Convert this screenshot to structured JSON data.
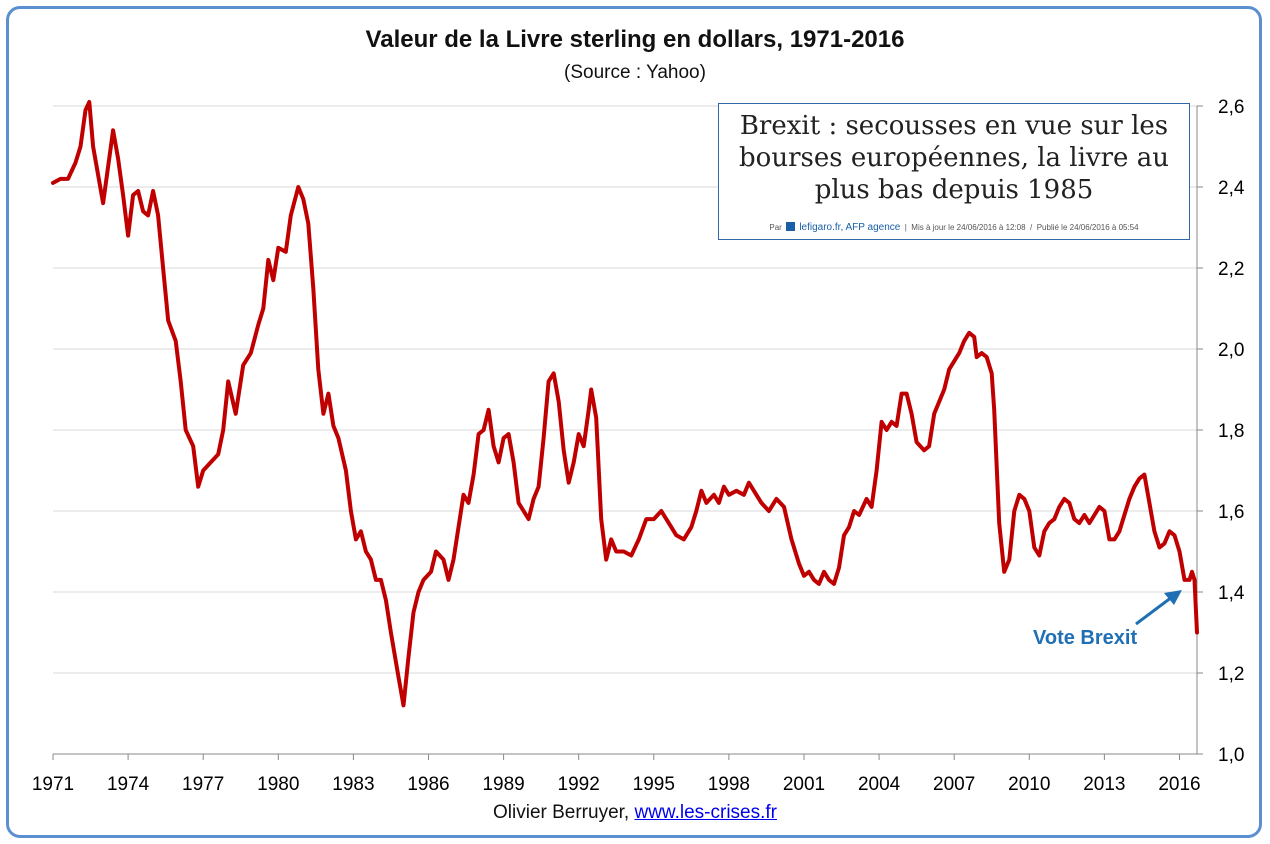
{
  "chart_data": {
    "type": "line",
    "title": "Valeur de la Livre sterling en dollars, 1971-2016",
    "subtitle": "(Source : Yahoo)",
    "xlim": [
      1971,
      2016.7
    ],
    "ylim": [
      1.0,
      2.6
    ],
    "grid": true,
    "x_ticks": [
      1971,
      1974,
      1977,
      1980,
      1983,
      1986,
      1989,
      1992,
      1995,
      1998,
      2001,
      2004,
      2007,
      2010,
      2013,
      2016
    ],
    "y_ticks": [
      {
        "value": 1.0,
        "label": "1,0"
      },
      {
        "value": 1.2,
        "label": "1,2"
      },
      {
        "value": 1.4,
        "label": "1,4"
      },
      {
        "value": 1.6,
        "label": "1,6"
      },
      {
        "value": 1.8,
        "label": "1,8"
      },
      {
        "value": 2.0,
        "label": "2,0"
      },
      {
        "value": 2.2,
        "label": "2,2"
      },
      {
        "value": 2.4,
        "label": "2,4"
      },
      {
        "value": 2.6,
        "label": "2,6"
      }
    ],
    "series": [
      {
        "color": "#c00000",
        "points": [
          [
            1971.0,
            2.41
          ],
          [
            1971.3,
            2.42
          ],
          [
            1971.6,
            2.42
          ],
          [
            1971.9,
            2.46
          ],
          [
            1972.1,
            2.5
          ],
          [
            1972.3,
            2.59
          ],
          [
            1972.45,
            2.61
          ],
          [
            1972.6,
            2.5
          ],
          [
            1972.8,
            2.43
          ],
          [
            1973.0,
            2.36
          ],
          [
            1973.2,
            2.45
          ],
          [
            1973.4,
            2.54
          ],
          [
            1973.6,
            2.47
          ],
          [
            1973.8,
            2.38
          ],
          [
            1974.0,
            2.28
          ],
          [
            1974.2,
            2.38
          ],
          [
            1974.4,
            2.39
          ],
          [
            1974.6,
            2.34
          ],
          [
            1974.8,
            2.33
          ],
          [
            1975.0,
            2.39
          ],
          [
            1975.2,
            2.33
          ],
          [
            1975.4,
            2.2
          ],
          [
            1975.6,
            2.07
          ],
          [
            1975.9,
            2.02
          ],
          [
            1976.1,
            1.92
          ],
          [
            1976.3,
            1.8
          ],
          [
            1976.6,
            1.76
          ],
          [
            1976.8,
            1.66
          ],
          [
            1977.0,
            1.7
          ],
          [
            1977.3,
            1.72
          ],
          [
            1977.6,
            1.74
          ],
          [
            1977.8,
            1.8
          ],
          [
            1978.0,
            1.92
          ],
          [
            1978.3,
            1.84
          ],
          [
            1978.6,
            1.96
          ],
          [
            1978.9,
            1.99
          ],
          [
            1979.2,
            2.06
          ],
          [
            1979.4,
            2.1
          ],
          [
            1979.6,
            2.22
          ],
          [
            1979.8,
            2.17
          ],
          [
            1980.0,
            2.25
          ],
          [
            1980.3,
            2.24
          ],
          [
            1980.5,
            2.33
          ],
          [
            1980.8,
            2.4
          ],
          [
            1981.0,
            2.37
          ],
          [
            1981.2,
            2.31
          ],
          [
            1981.4,
            2.15
          ],
          [
            1981.6,
            1.95
          ],
          [
            1981.8,
            1.84
          ],
          [
            1982.0,
            1.89
          ],
          [
            1982.2,
            1.81
          ],
          [
            1982.4,
            1.78
          ],
          [
            1982.7,
            1.7
          ],
          [
            1982.9,
            1.6
          ],
          [
            1983.1,
            1.53
          ],
          [
            1983.3,
            1.55
          ],
          [
            1983.5,
            1.5
          ],
          [
            1983.7,
            1.48
          ],
          [
            1983.9,
            1.43
          ],
          [
            1984.1,
            1.43
          ],
          [
            1984.3,
            1.38
          ],
          [
            1984.5,
            1.3
          ],
          [
            1984.8,
            1.19
          ],
          [
            1985.0,
            1.12
          ],
          [
            1985.2,
            1.24
          ],
          [
            1985.4,
            1.35
          ],
          [
            1985.6,
            1.4
          ],
          [
            1985.8,
            1.43
          ],
          [
            1986.1,
            1.45
          ],
          [
            1986.3,
            1.5
          ],
          [
            1986.6,
            1.48
          ],
          [
            1986.8,
            1.43
          ],
          [
            1987.0,
            1.48
          ],
          [
            1987.2,
            1.56
          ],
          [
            1987.4,
            1.64
          ],
          [
            1987.6,
            1.62
          ],
          [
            1987.8,
            1.69
          ],
          [
            1988.0,
            1.79
          ],
          [
            1988.2,
            1.8
          ],
          [
            1988.4,
            1.85
          ],
          [
            1988.6,
            1.76
          ],
          [
            1988.8,
            1.72
          ],
          [
            1989.0,
            1.78
          ],
          [
            1989.2,
            1.79
          ],
          [
            1989.4,
            1.72
          ],
          [
            1989.6,
            1.62
          ],
          [
            1989.8,
            1.6
          ],
          [
            1990.0,
            1.58
          ],
          [
            1990.2,
            1.63
          ],
          [
            1990.4,
            1.66
          ],
          [
            1990.6,
            1.78
          ],
          [
            1990.8,
            1.92
          ],
          [
            1991.0,
            1.94
          ],
          [
            1991.2,
            1.87
          ],
          [
            1991.4,
            1.75
          ],
          [
            1991.6,
            1.67
          ],
          [
            1991.8,
            1.72
          ],
          [
            1992.0,
            1.79
          ],
          [
            1992.2,
            1.76
          ],
          [
            1992.4,
            1.85
          ],
          [
            1992.5,
            1.9
          ],
          [
            1992.7,
            1.83
          ],
          [
            1992.9,
            1.58
          ],
          [
            1993.1,
            1.48
          ],
          [
            1993.3,
            1.53
          ],
          [
            1993.5,
            1.5
          ],
          [
            1993.8,
            1.5
          ],
          [
            1994.1,
            1.49
          ],
          [
            1994.4,
            1.53
          ],
          [
            1994.7,
            1.58
          ],
          [
            1995.0,
            1.58
          ],
          [
            1995.3,
            1.6
          ],
          [
            1995.6,
            1.57
          ],
          [
            1995.9,
            1.54
          ],
          [
            1996.2,
            1.53
          ],
          [
            1996.5,
            1.56
          ],
          [
            1996.7,
            1.6
          ],
          [
            1996.9,
            1.65
          ],
          [
            1997.1,
            1.62
          ],
          [
            1997.4,
            1.64
          ],
          [
            1997.6,
            1.62
          ],
          [
            1997.8,
            1.66
          ],
          [
            1998.0,
            1.64
          ],
          [
            1998.3,
            1.65
          ],
          [
            1998.6,
            1.64
          ],
          [
            1998.8,
            1.67
          ],
          [
            1999.0,
            1.65
          ],
          [
            1999.3,
            1.62
          ],
          [
            1999.6,
            1.6
          ],
          [
            1999.9,
            1.63
          ],
          [
            2000.2,
            1.61
          ],
          [
            2000.5,
            1.53
          ],
          [
            2000.8,
            1.47
          ],
          [
            2001.0,
            1.44
          ],
          [
            2001.2,
            1.45
          ],
          [
            2001.4,
            1.43
          ],
          [
            2001.6,
            1.42
          ],
          [
            2001.8,
            1.45
          ],
          [
            2002.0,
            1.43
          ],
          [
            2002.2,
            1.42
          ],
          [
            2002.4,
            1.46
          ],
          [
            2002.6,
            1.54
          ],
          [
            2002.8,
            1.56
          ],
          [
            2003.0,
            1.6
          ],
          [
            2003.2,
            1.59
          ],
          [
            2003.5,
            1.63
          ],
          [
            2003.7,
            1.61
          ],
          [
            2003.9,
            1.7
          ],
          [
            2004.1,
            1.82
          ],
          [
            2004.3,
            1.8
          ],
          [
            2004.5,
            1.82
          ],
          [
            2004.7,
            1.81
          ],
          [
            2004.9,
            1.89
          ],
          [
            2005.1,
            1.89
          ],
          [
            2005.3,
            1.84
          ],
          [
            2005.5,
            1.77
          ],
          [
            2005.8,
            1.75
          ],
          [
            2006.0,
            1.76
          ],
          [
            2006.2,
            1.84
          ],
          [
            2006.4,
            1.87
          ],
          [
            2006.6,
            1.9
          ],
          [
            2006.8,
            1.95
          ],
          [
            2007.0,
            1.97
          ],
          [
            2007.2,
            1.99
          ],
          [
            2007.4,
            2.02
          ],
          [
            2007.6,
            2.04
          ],
          [
            2007.8,
            2.03
          ],
          [
            2007.9,
            1.98
          ],
          [
            2008.1,
            1.99
          ],
          [
            2008.3,
            1.98
          ],
          [
            2008.5,
            1.94
          ],
          [
            2008.6,
            1.85
          ],
          [
            2008.8,
            1.57
          ],
          [
            2009.0,
            1.45
          ],
          [
            2009.2,
            1.48
          ],
          [
            2009.4,
            1.6
          ],
          [
            2009.6,
            1.64
          ],
          [
            2009.8,
            1.63
          ],
          [
            2010.0,
            1.6
          ],
          [
            2010.2,
            1.51
          ],
          [
            2010.4,
            1.49
          ],
          [
            2010.6,
            1.55
          ],
          [
            2010.8,
            1.57
          ],
          [
            2011.0,
            1.58
          ],
          [
            2011.2,
            1.61
          ],
          [
            2011.4,
            1.63
          ],
          [
            2011.6,
            1.62
          ],
          [
            2011.8,
            1.58
          ],
          [
            2012.0,
            1.57
          ],
          [
            2012.2,
            1.59
          ],
          [
            2012.4,
            1.57
          ],
          [
            2012.6,
            1.59
          ],
          [
            2012.8,
            1.61
          ],
          [
            2013.0,
            1.6
          ],
          [
            2013.2,
            1.53
          ],
          [
            2013.4,
            1.53
          ],
          [
            2013.6,
            1.55
          ],
          [
            2013.8,
            1.59
          ],
          [
            2014.0,
            1.63
          ],
          [
            2014.2,
            1.66
          ],
          [
            2014.4,
            1.68
          ],
          [
            2014.6,
            1.69
          ],
          [
            2014.8,
            1.62
          ],
          [
            2015.0,
            1.55
          ],
          [
            2015.2,
            1.51
          ],
          [
            2015.4,
            1.52
          ],
          [
            2015.6,
            1.55
          ],
          [
            2015.8,
            1.54
          ],
          [
            2016.0,
            1.5
          ],
          [
            2016.2,
            1.43
          ],
          [
            2016.4,
            1.43
          ],
          [
            2016.5,
            1.45
          ],
          [
            2016.6,
            1.43
          ],
          [
            2016.7,
            1.3
          ]
        ]
      }
    ]
  },
  "news": {
    "headline": "Brexit : secousses en vue sur les bourses européennes, la livre au plus bas depuis 1985",
    "by": "Par",
    "source": "lefigaro.fr",
    "agency": ", AFP agence",
    "updated": "Mis à jour le 24/06/2016 à 12:08",
    "published": "Publié le 24/06/2016 à 05:54"
  },
  "annotation": "Vote Brexit",
  "footer": {
    "author": "Olivier Berruyer,",
    "link": "www.les-crises.fr"
  }
}
